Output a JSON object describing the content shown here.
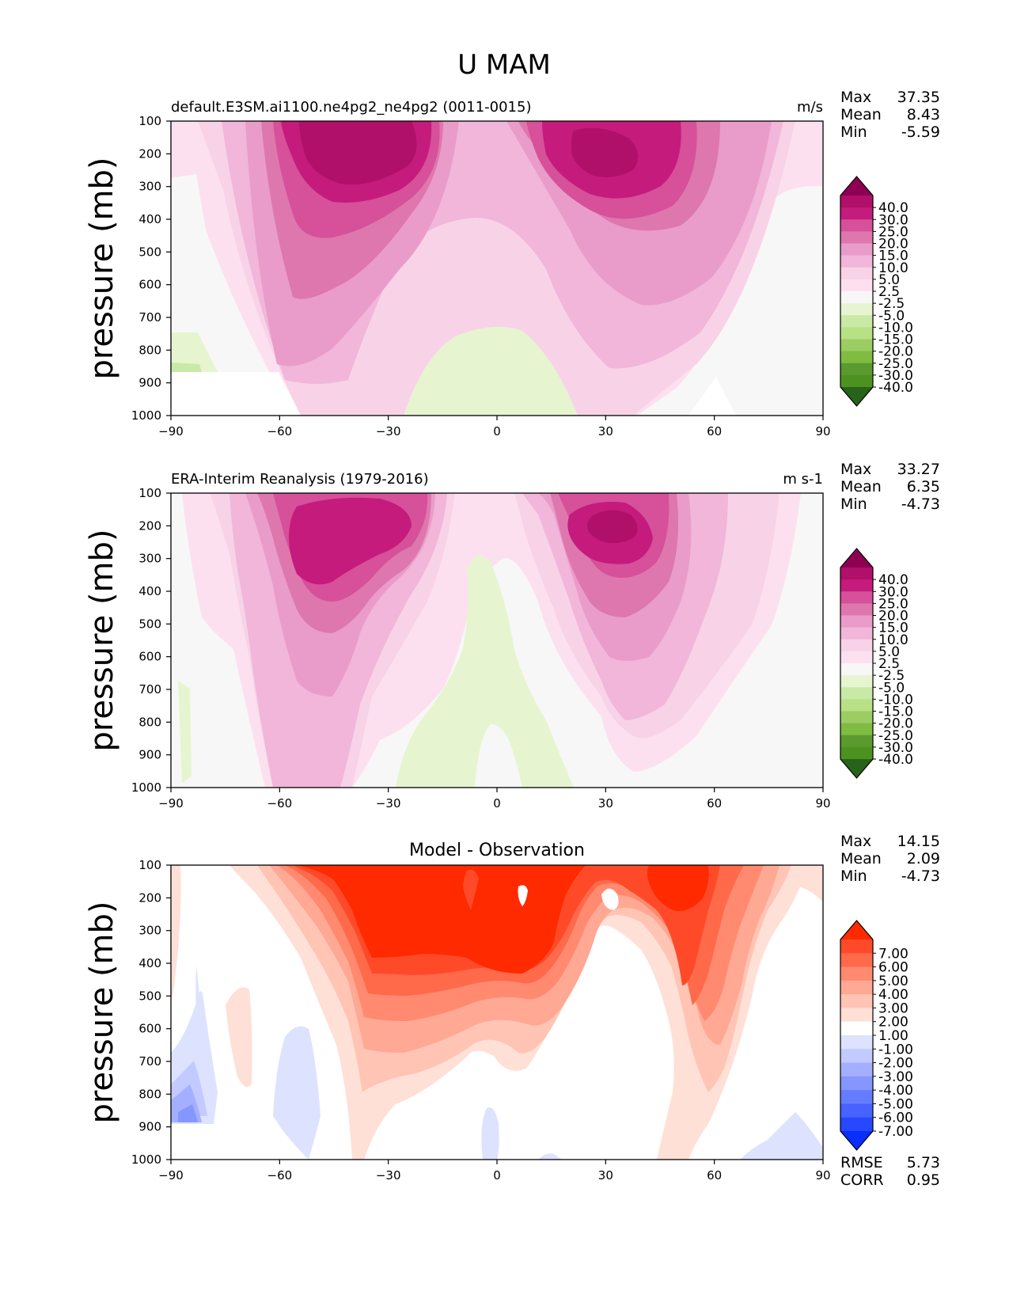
{
  "figure_title": "U MAM",
  "chart_data": [
    {
      "type": "heatmap",
      "title": "default.E3SM.ai1100.ne4pg2_ne4pg2 (0011-0015)",
      "units": "m/s",
      "xlabel": "",
      "ylabel": "pressure (mb)",
      "xlim": [
        -90,
        90
      ],
      "ylim": [
        1000,
        100
      ],
      "xticks": [
        "−90",
        "−60",
        "−30",
        "0",
        "30",
        "60",
        "90"
      ],
      "yticks": [
        "100",
        "200",
        "300",
        "400",
        "500",
        "600",
        "700",
        "800",
        "900",
        "1000"
      ],
      "stats": [
        {
          "label": "Max",
          "value": "37.35"
        },
        {
          "label": "Mean",
          "value": "8.43"
        },
        {
          "label": "Min",
          "value": "-5.59"
        }
      ],
      "colorbar_labels": [
        "40.0",
        "30.0",
        "25.0",
        "20.0",
        "15.0",
        "10.0",
        "5.0",
        "2.5",
        "-2.5",
        "-5.0",
        "-10.0",
        "-15.0",
        "-20.0",
        "-25.0",
        "-30.0",
        "-40.0"
      ],
      "colorbar_colors": [
        "#8e0152",
        "#b0106a",
        "#c51b7d",
        "#d6509a",
        "#de77ae",
        "#e99cc9",
        "#f1b6da",
        "#f8d3e7",
        "#fde0ef",
        "#f7f7f7",
        "#e6f5d0",
        "#c9e9a6",
        "#b8e186",
        "#9bcd63",
        "#7fbc41",
        "#5a9a2e",
        "#4d9221",
        "#276419"
      ],
      "jets": [
        {
          "lat": -37,
          "p": 190,
          "max": 37.35
        },
        {
          "lat": 30,
          "p": 200,
          "max": 34
        }
      ]
    },
    {
      "type": "heatmap",
      "title": "ERA-Interim Reanalysis (1979-2016)",
      "units": "m s-1",
      "xlabel": "",
      "ylabel": "pressure (mb)",
      "xlim": [
        -90,
        90
      ],
      "ylim": [
        1000,
        100
      ],
      "xticks": [
        "−90",
        "−60",
        "−30",
        "0",
        "30",
        "60",
        "90"
      ],
      "yticks": [
        "100",
        "200",
        "300",
        "400",
        "500",
        "600",
        "700",
        "800",
        "900",
        "1000"
      ],
      "stats": [
        {
          "label": "Max",
          "value": "33.27"
        },
        {
          "label": "Mean",
          "value": "6.35"
        },
        {
          "label": "Min",
          "value": "-4.73"
        }
      ],
      "colorbar_labels": [
        "40.0",
        "30.0",
        "25.0",
        "20.0",
        "15.0",
        "10.0",
        "5.0",
        "2.5",
        "-2.5",
        "-5.0",
        "-10.0",
        "-15.0",
        "-20.0",
        "-25.0",
        "-30.0",
        "-40.0"
      ],
      "colorbar_colors": [
        "#8e0152",
        "#b0106a",
        "#c51b7d",
        "#d6509a",
        "#de77ae",
        "#e99cc9",
        "#f1b6da",
        "#f8d3e7",
        "#fde0ef",
        "#f7f7f7",
        "#e6f5d0",
        "#c9e9a6",
        "#b8e186",
        "#9bcd63",
        "#7fbc41",
        "#5a9a2e",
        "#4d9221",
        "#276419"
      ],
      "jets": [
        {
          "lat": -45,
          "p": 220,
          "max": 30
        },
        {
          "lat": 30,
          "p": 190,
          "max": 33.27
        }
      ]
    },
    {
      "type": "heatmap",
      "title": "Model - Observation",
      "units": "",
      "xlabel": "",
      "ylabel": "pressure (mb)",
      "xlim": [
        -90,
        90
      ],
      "ylim": [
        1000,
        100
      ],
      "xticks": [
        "−90",
        "−60",
        "−30",
        "0",
        "30",
        "60",
        "90"
      ],
      "yticks": [
        "100",
        "200",
        "300",
        "400",
        "500",
        "600",
        "700",
        "800",
        "900",
        "1000"
      ],
      "stats": [
        {
          "label": "Max",
          "value": "14.15"
        },
        {
          "label": "Mean",
          "value": "2.09"
        },
        {
          "label": "Min",
          "value": "-4.73"
        }
      ],
      "footer_stats": [
        {
          "label": "RMSE",
          "value": "5.73"
        },
        {
          "label": "CORR",
          "value": "0.95"
        }
      ],
      "colorbar_labels": [
        "7.00",
        "6.00",
        "5.00",
        "4.00",
        "3.00",
        "2.00",
        "1.00",
        "-1.00",
        "-2.00",
        "-3.00",
        "-4.00",
        "-5.00",
        "-6.00",
        "-7.00"
      ],
      "colorbar_colors": [
        "#ff2a00",
        "#ff4a2a",
        "#ff6a4a",
        "#ff8a70",
        "#ffa894",
        "#ffc4b4",
        "#ffe0d6",
        "#ffffff",
        "#dde2ff",
        "#c2caff",
        "#a4b0ff",
        "#8596ff",
        "#667cff",
        "#4762ff",
        "#2848ff",
        "#0a2eff"
      ],
      "jets": []
    }
  ]
}
